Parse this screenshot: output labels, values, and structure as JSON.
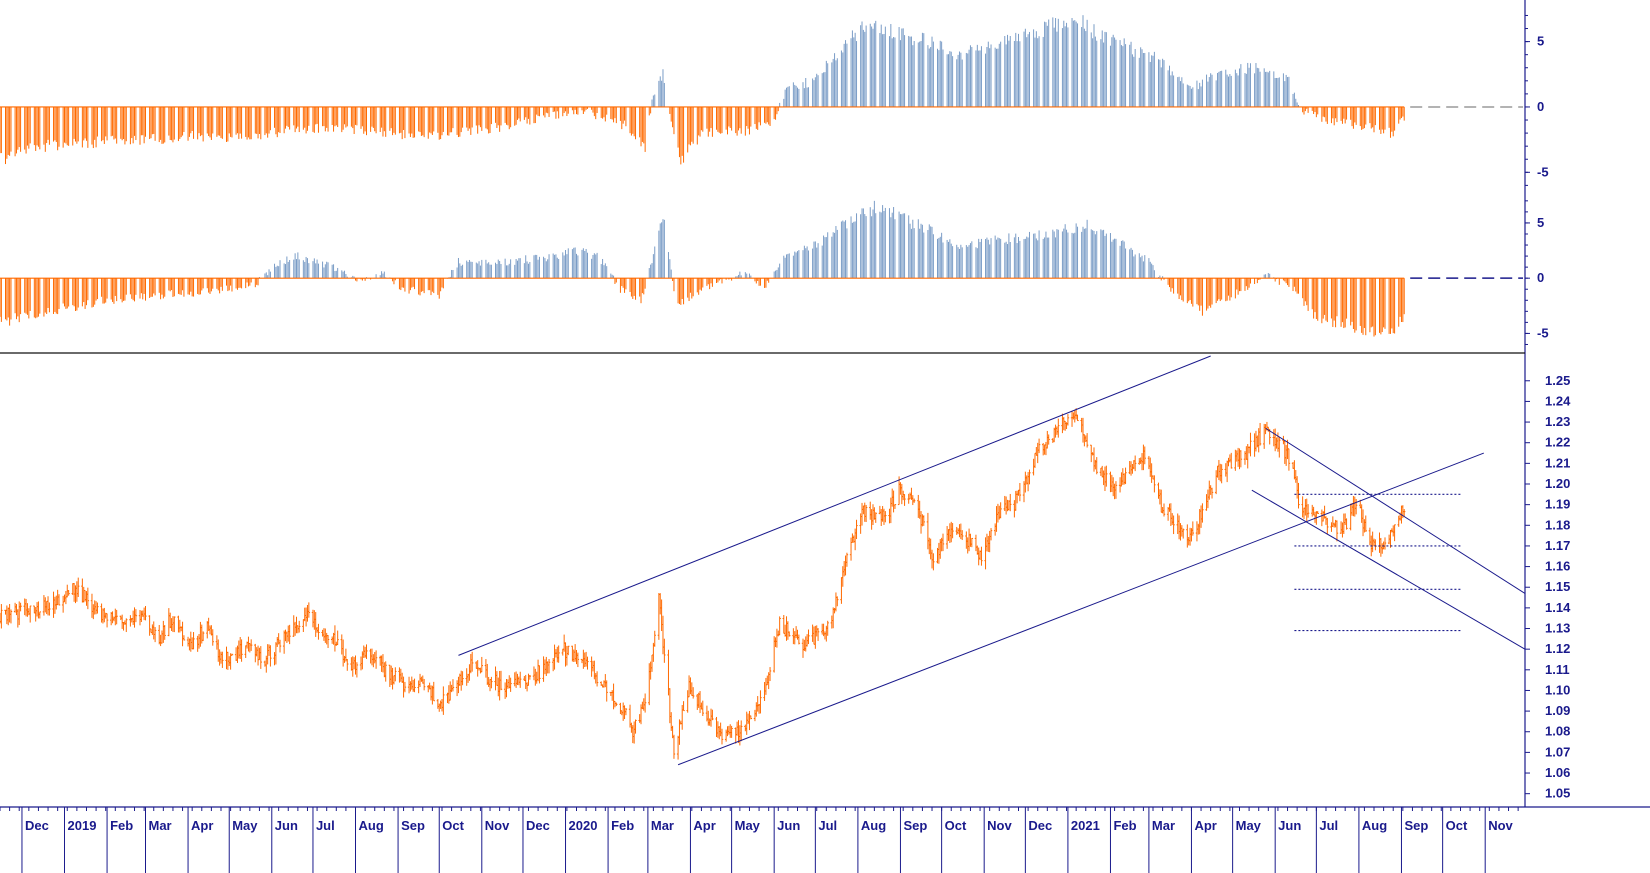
{
  "chart_data": [
    {
      "type": "bar",
      "panel": "oscillator-top",
      "x_range": [
        "2018-11-15",
        "2021-11-30"
      ],
      "ylim": [
        -6.2,
        7.8
      ],
      "y_ticks": [
        5,
        0,
        -5
      ],
      "y_tick_labels": [
        "5",
        "0",
        "-5"
      ],
      "colors": {
        "positive": "#7a9cc6",
        "negative": "#ff6a00"
      },
      "zero_line_projection": "dashed",
      "series": [
        {
          "points": [
            [
              "2018-11-15",
              -4.0
            ],
            [
              "2018-12-15",
              -3.0
            ],
            [
              "2019-01-15",
              -2.8
            ],
            [
              "2019-02-15",
              -2.5
            ],
            [
              "2019-03-15",
              -2.4
            ],
            [
              "2019-04-15",
              -2.2
            ],
            [
              "2019-05-15",
              -2.3
            ],
            [
              "2019-06-15",
              -1.8
            ],
            [
              "2019-07-15",
              -1.6
            ],
            [
              "2019-08-15",
              -1.8
            ],
            [
              "2019-09-15",
              -2.3
            ],
            [
              "2019-10-15",
              -2.0
            ],
            [
              "2019-11-15",
              -1.5
            ],
            [
              "2019-12-15",
              -0.8
            ],
            [
              "2020-01-15",
              -0.3
            ],
            [
              "2020-02-15",
              -1.5
            ],
            [
              "2020-02-28",
              -3.0
            ],
            [
              "2020-03-05",
              1.0
            ],
            [
              "2020-03-12",
              2.5
            ],
            [
              "2020-03-20",
              -2.5
            ],
            [
              "2020-03-25",
              -4.0
            ],
            [
              "2020-04-10",
              -2.0
            ],
            [
              "2020-05-15",
              -1.8
            ],
            [
              "2020-06-01",
              -1.0
            ],
            [
              "2020-06-10",
              1.5
            ],
            [
              "2020-07-01",
              2.0
            ],
            [
              "2020-07-20",
              4.5
            ],
            [
              "2020-08-10",
              6.5
            ],
            [
              "2020-09-01",
              5.5
            ],
            [
              "2020-09-20",
              5.0
            ],
            [
              "2020-10-15",
              4.0
            ],
            [
              "2020-11-15",
              5.0
            ],
            [
              "2020-12-15",
              6.0
            ],
            [
              "2021-01-05",
              6.8
            ],
            [
              "2021-01-25",
              5.5
            ],
            [
              "2021-02-15",
              4.5
            ],
            [
              "2021-03-10",
              3.5
            ],
            [
              "2021-04-01",
              1.5
            ],
            [
              "2021-04-20",
              2.5
            ],
            [
              "2021-05-15",
              3.0
            ],
            [
              "2021-06-10",
              2.3
            ],
            [
              "2021-06-20",
              -0.3
            ],
            [
              "2021-07-15",
              -1.2
            ],
            [
              "2021-08-10",
              -1.5
            ],
            [
              "2021-08-25",
              -2.0
            ],
            [
              "2021-09-03",
              -0.8
            ]
          ]
        }
      ]
    },
    {
      "type": "bar",
      "panel": "oscillator-bottom",
      "x_range": [
        "2018-11-15",
        "2021-11-30"
      ],
      "ylim": [
        -6.5,
        7.8
      ],
      "y_ticks": [
        5,
        0,
        -5
      ],
      "y_tick_labels": [
        "5",
        "0",
        "-5"
      ],
      "colors": {
        "positive": "#7a9cc6",
        "negative": "#ff6a00"
      },
      "zero_line_projection": "dashed",
      "series": [
        {
          "points": [
            [
              "2018-11-15",
              -4.0
            ],
            [
              "2018-12-20",
              -3.0
            ],
            [
              "2019-02-01",
              -2.0
            ],
            [
              "2019-03-15",
              -1.5
            ],
            [
              "2019-04-15",
              -1.2
            ],
            [
              "2019-05-20",
              -0.6
            ],
            [
              "2019-06-01",
              1.0
            ],
            [
              "2019-06-20",
              2.0
            ],
            [
              "2019-07-15",
              1.0
            ],
            [
              "2019-08-05",
              -0.3
            ],
            [
              "2019-08-20",
              0.5
            ],
            [
              "2019-09-05",
              -1.0
            ],
            [
              "2019-10-01",
              -1.5
            ],
            [
              "2019-10-15",
              1.5
            ],
            [
              "2019-11-15",
              1.5
            ],
            [
              "2019-12-15",
              1.8
            ],
            [
              "2020-01-10",
              2.5
            ],
            [
              "2020-01-25",
              2.0
            ],
            [
              "2020-02-10",
              -1.0
            ],
            [
              "2020-02-25",
              -2.0
            ],
            [
              "2020-03-05",
              2.0
            ],
            [
              "2020-03-12",
              5.5
            ],
            [
              "2020-03-22",
              -2.5
            ],
            [
              "2020-04-10",
              -1.0
            ],
            [
              "2020-05-10",
              0.5
            ],
            [
              "2020-05-25",
              -0.8
            ],
            [
              "2020-06-10",
              2.0
            ],
            [
              "2020-07-01",
              3.0
            ],
            [
              "2020-07-25",
              5.0
            ],
            [
              "2020-08-15",
              6.5
            ],
            [
              "2020-09-10",
              5.0
            ],
            [
              "2020-10-15",
              3.0
            ],
            [
              "2020-11-15",
              3.5
            ],
            [
              "2020-12-15",
              4.0
            ],
            [
              "2021-01-15",
              4.8
            ],
            [
              "2021-02-10",
              3.0
            ],
            [
              "2021-03-01",
              1.5
            ],
            [
              "2021-03-20",
              -1.5
            ],
            [
              "2021-04-10",
              -3.0
            ],
            [
              "2021-05-10",
              -1.0
            ],
            [
              "2021-05-25",
              0.3
            ],
            [
              "2021-06-15",
              -1.0
            ],
            [
              "2021-07-01",
              -3.5
            ],
            [
              "2021-08-01",
              -4.5
            ],
            [
              "2021-08-25",
              -5.0
            ],
            [
              "2021-09-03",
              -3.5
            ]
          ]
        }
      ]
    },
    {
      "type": "line",
      "panel": "price",
      "x_range": [
        "2018-11-15",
        "2021-11-30"
      ],
      "ylim": [
        1.045,
        1.262
      ],
      "y_ticks": [
        1.05,
        1.06,
        1.07,
        1.08,
        1.09,
        1.1,
        1.11,
        1.12,
        1.13,
        1.14,
        1.15,
        1.16,
        1.17,
        1.18,
        1.19,
        1.2,
        1.21,
        1.22,
        1.23,
        1.24,
        1.25
      ],
      "y_tick_labels": [
        "1.05",
        "1.06",
        "1.07",
        "1.08",
        "1.09",
        "1.10",
        "1.11",
        "1.12",
        "1.13",
        "1.14",
        "1.15",
        "1.16",
        "1.17",
        "1.18",
        "1.19",
        "1.20",
        "1.21",
        "1.22",
        "1.23",
        "1.24",
        "1.25"
      ],
      "x_tick_labels": [
        "Dec",
        "2019",
        "Feb",
        "Mar",
        "Apr",
        "May",
        "Jun",
        "Jul",
        "Aug",
        "Sep",
        "Oct",
        "Nov",
        "Dec",
        "2020",
        "Feb",
        "Mar",
        "Apr",
        "May",
        "Jun",
        "Jul",
        "Aug",
        "Sep",
        "Oct",
        "Nov",
        "Dec",
        "2021",
        "Feb",
        "Mar",
        "Apr",
        "May",
        "Jun",
        "Jul",
        "Aug",
        "Sep",
        "Oct",
        "Nov"
      ],
      "x_tick_dates": [
        "2018-12-01",
        "2019-01-01",
        "2019-02-01",
        "2019-03-01",
        "2019-04-01",
        "2019-05-01",
        "2019-06-01",
        "2019-07-01",
        "2019-08-01",
        "2019-09-01",
        "2019-10-01",
        "2019-11-01",
        "2019-12-01",
        "2020-01-01",
        "2020-02-01",
        "2020-03-01",
        "2020-04-01",
        "2020-05-01",
        "2020-06-01",
        "2020-07-01",
        "2020-08-01",
        "2020-09-01",
        "2020-10-01",
        "2020-11-01",
        "2020-12-01",
        "2021-01-01",
        "2021-02-01",
        "2021-03-01",
        "2021-04-01",
        "2021-05-01",
        "2021-06-01",
        "2021-07-01",
        "2021-08-01",
        "2021-09-01",
        "2021-10-01",
        "2021-11-01"
      ],
      "colors": {
        "price": "#ff6a00",
        "trendlines": "#1a1a8c",
        "levels": "#1a1a8c"
      },
      "series": [
        {
          "points": [
            [
              "2018-11-15",
              1.137
            ],
            [
              "2018-12-15",
              1.14
            ],
            [
              "2019-01-10",
              1.15
            ],
            [
              "2019-01-20",
              1.141
            ],
            [
              "2019-02-10",
              1.132
            ],
            [
              "2019-02-25",
              1.137
            ],
            [
              "2019-03-10",
              1.124
            ],
            [
              "2019-03-20",
              1.135
            ],
            [
              "2019-04-01",
              1.122
            ],
            [
              "2019-04-15",
              1.13
            ],
            [
              "2019-04-25",
              1.115
            ],
            [
              "2019-05-15",
              1.12
            ],
            [
              "2019-05-25",
              1.114
            ],
            [
              "2019-06-15",
              1.128
            ],
            [
              "2019-06-25",
              1.138
            ],
            [
              "2019-07-15",
              1.125
            ],
            [
              "2019-08-01",
              1.11
            ],
            [
              "2019-08-10",
              1.12
            ],
            [
              "2019-08-25",
              1.108
            ],
            [
              "2019-09-10",
              1.102
            ],
            [
              "2019-09-20",
              1.105
            ],
            [
              "2019-10-01",
              1.093
            ],
            [
              "2019-10-15",
              1.103
            ],
            [
              "2019-10-25",
              1.112
            ],
            [
              "2019-11-15",
              1.102
            ],
            [
              "2019-12-01",
              1.102
            ],
            [
              "2019-12-15",
              1.11
            ],
            [
              "2019-12-31",
              1.12
            ],
            [
              "2020-01-20",
              1.11
            ],
            [
              "2020-02-05",
              1.098
            ],
            [
              "2020-02-20",
              1.08
            ],
            [
              "2020-03-01",
              1.102
            ],
            [
              "2020-03-09",
              1.145
            ],
            [
              "2020-03-20",
              1.07
            ],
            [
              "2020-03-31",
              1.102
            ],
            [
              "2020-04-10",
              1.092
            ],
            [
              "2020-04-24",
              1.078
            ],
            [
              "2020-05-10",
              1.082
            ],
            [
              "2020-05-25",
              1.098
            ],
            [
              "2020-06-05",
              1.133
            ],
            [
              "2020-06-20",
              1.122
            ],
            [
              "2020-07-10",
              1.13
            ],
            [
              "2020-07-25",
              1.166
            ],
            [
              "2020-08-05",
              1.187
            ],
            [
              "2020-08-20",
              1.183
            ],
            [
              "2020-09-01",
              1.198
            ],
            [
              "2020-09-15",
              1.185
            ],
            [
              "2020-09-25",
              1.165
            ],
            [
              "2020-10-10",
              1.18
            ],
            [
              "2020-10-30",
              1.166
            ],
            [
              "2020-11-10",
              1.183
            ],
            [
              "2020-11-25",
              1.192
            ],
            [
              "2020-12-10",
              1.215
            ],
            [
              "2020-12-30",
              1.23
            ],
            [
              "2021-01-06",
              1.234
            ],
            [
              "2021-01-20",
              1.21
            ],
            [
              "2021-02-05",
              1.198
            ],
            [
              "2021-02-25",
              1.215
            ],
            [
              "2021-03-10",
              1.19
            ],
            [
              "2021-03-31",
              1.173
            ],
            [
              "2021-04-20",
              1.205
            ],
            [
              "2021-05-10",
              1.215
            ],
            [
              "2021-05-25",
              1.225
            ],
            [
              "2021-06-10",
              1.215
            ],
            [
              "2021-06-20",
              1.188
            ],
            [
              "2021-07-05",
              1.185
            ],
            [
              "2021-07-20",
              1.177
            ],
            [
              "2021-07-30",
              1.19
            ],
            [
              "2021-08-10",
              1.172
            ],
            [
              "2021-08-20",
              1.168
            ],
            [
              "2021-09-03",
              1.188
            ]
          ]
        }
      ],
      "trendlines": [
        [
          [
            "2019-10-15",
            1.117
          ],
          [
            "2021-04-15",
            1.262
          ]
        ],
        [
          [
            "2020-03-23",
            1.064
          ],
          [
            "2021-10-31",
            1.215
          ]
        ],
        [
          [
            "2021-05-25",
            1.227
          ],
          [
            "2021-11-30",
            1.147
          ]
        ],
        [
          [
            "2021-05-15",
            1.197
          ],
          [
            "2021-11-30",
            1.12
          ]
        ]
      ],
      "levels": [
        {
          "y": 1.195,
          "from": "2021-06-15",
          "to": "2021-10-15"
        },
        {
          "y": 1.17,
          "from": "2021-06-15",
          "to": "2021-10-15"
        },
        {
          "y": 1.149,
          "from": "2021-06-15",
          "to": "2021-10-15"
        },
        {
          "y": 1.129,
          "from": "2021-06-15",
          "to": "2021-10-15"
        }
      ]
    }
  ]
}
